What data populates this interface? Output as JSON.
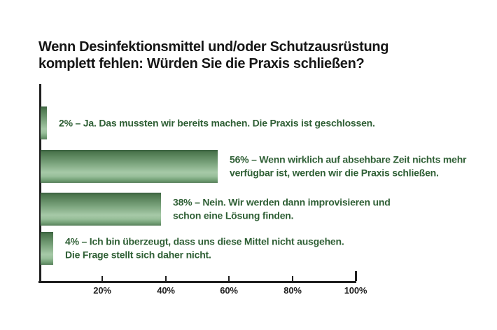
{
  "title": "Wenn Desinfektionsmittel und/oder Schutzausrüstung\nkomplett fehlen: Würden Sie die Praxis schließen?",
  "colors": {
    "background": "#ffffff",
    "title_text": "#161616",
    "axis": "#1f1f1f",
    "bar_gradient_dark": "#3a6140",
    "bar_gradient_light": "#a6c9a7",
    "label_text": "#2f5f35"
  },
  "chart_data": {
    "type": "bar",
    "orientation": "horizontal",
    "title": "Wenn Desinfektionsmittel und/oder Schutzausrüstung komplett fehlen: Würden Sie die Praxis schließen?",
    "categories": [
      "Ja. Das mussten wir bereits machen. Die Praxis ist geschlossen.",
      "Wenn wirklich auf absehbare Zeit nichts mehr verfügbar ist, werden wir die Praxis schließen.",
      "Nein. Wir werden dann improvisieren und schon eine Lösung finden.",
      "Ich bin überzeugt, dass uns diese Mittel nicht ausgehen. Die Frage stellt sich daher nicht."
    ],
    "values": [
      2,
      56,
      38,
      4
    ],
    "labels": [
      "2% – Ja. Das mussten wir bereits machen. Die Praxis ist geschlossen.",
      "56% – Wenn wirklich auf absehbare Zeit nichts mehr\nverfügbar ist, werden wir die Praxis schließen.",
      "38% – Nein. Wir werden dann improvisieren und\nschon eine Lösung finden.",
      "4% – Ich bin überzeugt, dass uns diese Mittel nicht ausgehen.\nDie Frage stellt sich daher nicht."
    ],
    "x_ticks": [
      "20%",
      "40%",
      "60%",
      "80%",
      "100%"
    ],
    "x_tick_values": [
      20,
      40,
      60,
      80,
      100
    ],
    "xlim": [
      0,
      100
    ],
    "grid": false,
    "legend": false
  }
}
